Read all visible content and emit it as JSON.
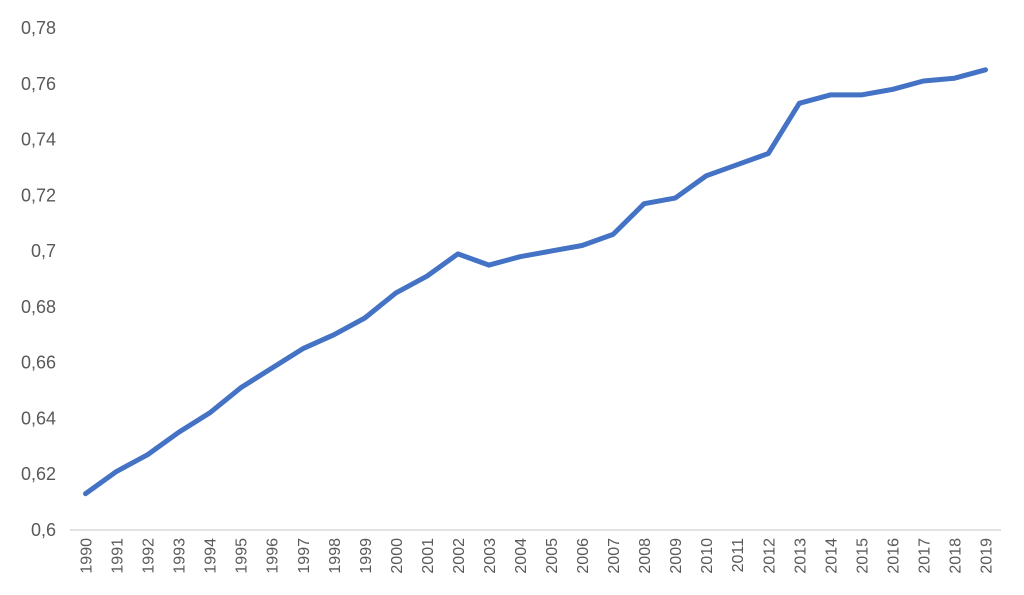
{
  "chart_data": {
    "type": "line",
    "title": "",
    "xlabel": "",
    "ylabel": "",
    "categories": [
      "1990",
      "1991",
      "1992",
      "1993",
      "1994",
      "1995",
      "1996",
      "1997",
      "1998",
      "1999",
      "2000",
      "2001",
      "2002",
      "2003",
      "2004",
      "2005",
      "2006",
      "2007",
      "2008",
      "2009",
      "2010",
      "2011",
      "2012",
      "2013",
      "2014",
      "2015",
      "2016",
      "2017",
      "2018",
      "2019"
    ],
    "series": [
      {
        "values": [
          0.613,
          0.621,
          0.627,
          0.635,
          0.642,
          0.651,
          0.658,
          0.665,
          0.67,
          0.676,
          0.685,
          0.691,
          0.699,
          0.695,
          0.698,
          0.7,
          0.702,
          0.706,
          0.717,
          0.719,
          0.727,
          0.731,
          0.735,
          0.753,
          0.756,
          0.756,
          0.758,
          0.761,
          0.762,
          0.765
        ],
        "color": "#4472C4"
      }
    ],
    "ylim": [
      0.6,
      0.78
    ],
    "y_ticks": [
      "0,6",
      "0,62",
      "0,64",
      "0,66",
      "0,68",
      "0,7",
      "0,72",
      "0,74",
      "0,76",
      "0,78"
    ],
    "grid": false,
    "legend": "none"
  }
}
